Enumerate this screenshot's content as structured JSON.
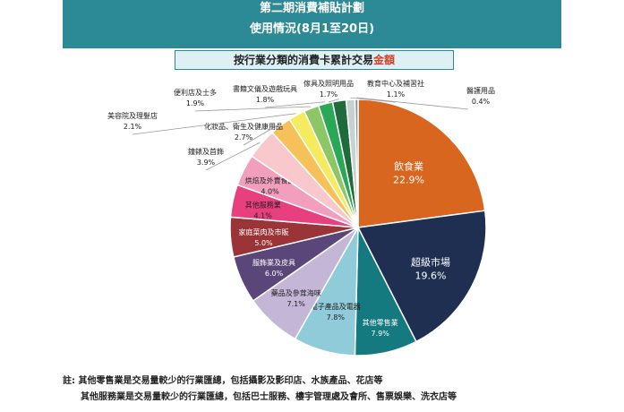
{
  "header": {
    "title": "第二期消費補貼計劃",
    "subtitle": "使用情況(8月1至20日)"
  },
  "chart_data": {
    "type": "pie",
    "title_prefix": "按行業分類的消費卡累計交易",
    "title_highlight": "金額",
    "slices": [
      {
        "label": "飲食業",
        "value": 22.9,
        "display": "22.9%",
        "color": "#d9661f",
        "label_color": "#ffffff"
      },
      {
        "label": "超級市場",
        "value": 19.6,
        "display": "19.6%",
        "color": "#1f2f52",
        "label_color": "#ffffff"
      },
      {
        "label": "其他零售業",
        "value": 7.9,
        "display": "7.9%",
        "color": "#147a80",
        "label_color": "#ffffff"
      },
      {
        "label": "電子產品及電器",
        "value": 7.8,
        "display": "7.8%",
        "color": "#8fcbd8",
        "label_color": "#222222"
      },
      {
        "label": "藥品及參茸海味",
        "value": 7.1,
        "display": "7.1%",
        "color": "#c4b6d6",
        "label_color": "#222222"
      },
      {
        "label": "服飾業及皮具",
        "value": 6.0,
        "display": "6.0%",
        "color": "#5a4678",
        "label_color": "#ffffff"
      },
      {
        "label": "家庭菜肉及市販",
        "value": 5.0,
        "display": "5.0%",
        "color": "#9a3436",
        "label_color": "#ffffff"
      },
      {
        "label": "其他服務業",
        "value": 4.1,
        "display": "4.1%",
        "color": "#e8407f",
        "label_color": "#222222"
      },
      {
        "label": "烘焙及外賣食品",
        "value": 4.0,
        "display": "4.0%",
        "color": "#f29fbe",
        "label_color": "#222222"
      },
      {
        "label": "鐘錶及首飾",
        "value": 3.9,
        "display": "3.9%",
        "color": "#f8c8cc",
        "label_color": "#222222"
      },
      {
        "label": "化妝品、衛生及健康用品",
        "value": 2.7,
        "display": "2.7%",
        "color": "#f7c15a",
        "label_color": "#222222"
      },
      {
        "label": "美容院及理髮店",
        "value": 2.1,
        "display": "2.1%",
        "color": "#f4ec5e",
        "label_color": "#222222"
      },
      {
        "label": "便利店及士多",
        "value": 1.9,
        "display": "1.9%",
        "color": "#8cc665",
        "label_color": "#222222"
      },
      {
        "label": "書籍文儀及遊戲玩具",
        "value": 1.8,
        "display": "1.8%",
        "color": "#2aa757",
        "label_color": "#222222"
      },
      {
        "label": "傢具及照明用品",
        "value": 1.7,
        "display": "1.7%",
        "color": "#1f6b3b",
        "label_color": "#222222"
      },
      {
        "label": "教育中心及補習社",
        "value": 1.1,
        "display": "1.1%",
        "color": "#c6d2cf",
        "label_color": "#222222"
      },
      {
        "label": "醫護用品",
        "value": 0.4,
        "display": "0.4%",
        "color": "#8c95a0",
        "label_color": "#222222"
      }
    ]
  },
  "notes": {
    "line1": "註: 其他零售業是交易量較少的行業匯總，包括攝影及影印店、水族產品、花店等",
    "line2": "其他服務業是交易量較少的行業匯總，包括巴士服務、樓宇管理處及會所、售票娛樂、洗衣店等"
  }
}
